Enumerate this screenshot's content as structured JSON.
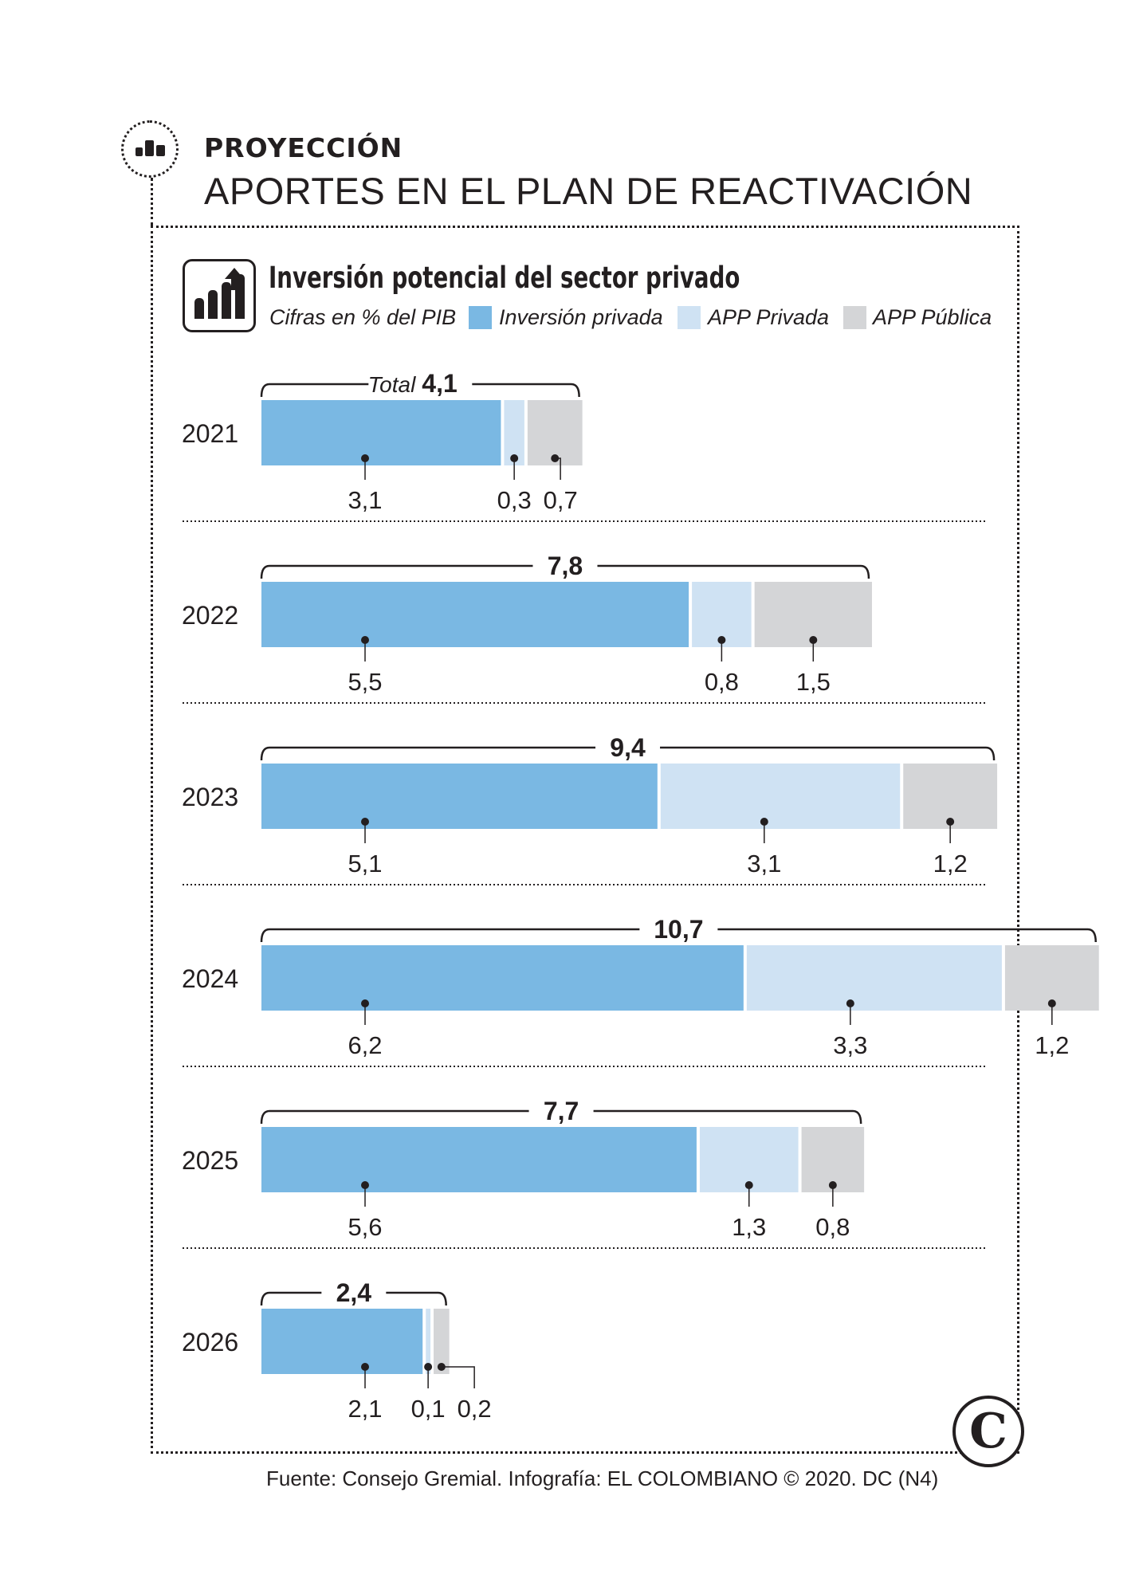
{
  "header": {
    "kicker": "PROYECCIÓN",
    "title": "APORTES EN EL PLAN DE REACTIVACIÓN"
  },
  "subtitle": "Inversión potencial del sector privado",
  "units": "Cifras en % del PIB",
  "total_prefix": "Total",
  "source": "Fuente: Consejo Gremial. Infografía: EL COLOMBIANO © 2020. DC (N4)",
  "logo_letter": "C",
  "colors": {
    "inversion_privada": "#7ab8e3",
    "app_privada": "#cfe2f3",
    "app_publica": "#d4d5d7",
    "ink": "#231f20"
  },
  "chart_data": {
    "type": "bar",
    "orientation": "horizontal",
    "stacked": true,
    "title": "Inversión potencial del sector privado",
    "subtitle": "Cifras en % del PIB",
    "categories": [
      "2021",
      "2022",
      "2023",
      "2024",
      "2025",
      "2026"
    ],
    "series": [
      {
        "name": "Inversión privada",
        "color": "#7ab8e3",
        "values": [
          3.1,
          5.5,
          5.1,
          6.2,
          5.6,
          2.1
        ],
        "labels": [
          "3,1",
          "5,5",
          "5,1",
          "6,2",
          "5,6",
          "2,1"
        ]
      },
      {
        "name": "APP Privada",
        "color": "#cfe2f3",
        "values": [
          0.3,
          0.8,
          3.1,
          3.3,
          1.3,
          0.1
        ],
        "labels": [
          "0,3",
          "0,8",
          "3,1",
          "3,3",
          "1,3",
          "0,1"
        ]
      },
      {
        "name": "APP Pública",
        "color": "#d4d5d7",
        "values": [
          0.7,
          1.5,
          1.2,
          1.2,
          0.8,
          0.2
        ],
        "labels": [
          "0,7",
          "1,5",
          "1,2",
          "1,2",
          "0,8",
          "0,2"
        ]
      }
    ],
    "totals": [
      4.1,
      7.8,
      9.4,
      10.7,
      7.7,
      2.4
    ],
    "total_labels": [
      "4,1",
      "7,8",
      "9,4",
      "10,7",
      "7,7",
      "2,4"
    ],
    "xlim": [
      0,
      10.7
    ],
    "legend": "top",
    "grid": false
  }
}
